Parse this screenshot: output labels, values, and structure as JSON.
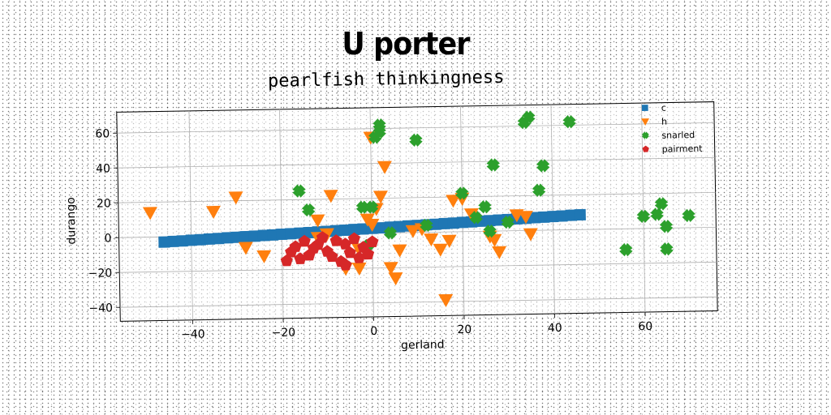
{
  "chart_data": {
    "type": "scatter",
    "title": "U porter",
    "subtitle": "pearlfish thinkingness",
    "xlabel": "gerland",
    "ylabel": "durango",
    "xlim": [
      -56,
      76
    ],
    "ylim": [
      -48,
      72
    ],
    "xticks": [
      "−40",
      "−20",
      "0",
      "20",
      "40",
      "60"
    ],
    "xtick_values": [
      -40,
      -20,
      0,
      20,
      40,
      60
    ],
    "yticks": [
      "−40",
      "−20",
      "0",
      "20",
      "40",
      "60"
    ],
    "ytick_values": [
      -40,
      -20,
      0,
      20,
      40,
      60
    ],
    "grid": true,
    "legend_position": "top-right",
    "series": [
      {
        "name": "c",
        "color": "#1f77b4",
        "marker": "square",
        "x": [
          -46,
          -44,
          -42,
          -40,
          -38,
          -36,
          -34,
          -32,
          -30,
          -28,
          -26,
          -24,
          -22,
          -20,
          -18,
          -16,
          -14,
          -12,
          -10,
          -8,
          -6,
          -4,
          -2,
          0,
          2,
          4,
          6,
          8,
          10,
          12,
          14,
          16,
          18,
          20,
          22,
          24,
          26,
          28,
          30,
          32,
          34,
          36,
          38,
          40,
          42,
          44,
          46
        ],
        "y": [
          -3,
          -2.7,
          -2.5,
          -2.2,
          -2,
          -1.7,
          -1.5,
          -1.2,
          -1,
          -0.7,
          -0.5,
          -0.2,
          0,
          0.3,
          0.5,
          0.8,
          1,
          1.3,
          1.5,
          1.8,
          2,
          2.3,
          2.5,
          2.8,
          3,
          3.3,
          3.5,
          3.8,
          4,
          4.3,
          4.5,
          4.8,
          5,
          5.3,
          5.5,
          5.8,
          6,
          6.3,
          6.5,
          6.8,
          7,
          7.3,
          7.5,
          7.8,
          8,
          8.3,
          8.5
        ]
      },
      {
        "name": "h",
        "color": "#ff7f0e",
        "marker": "triangle-down",
        "x": [
          -49,
          -35,
          -30,
          -28,
          -24,
          -12,
          -10,
          -9,
          -12,
          -6,
          -3,
          0,
          1,
          2,
          3,
          0,
          -1,
          4,
          5,
          6,
          9,
          11,
          13,
          15,
          17,
          18,
          20,
          22,
          26,
          27,
          28,
          32,
          34,
          35,
          16,
          -3
        ],
        "y": [
          14,
          14,
          22,
          -7,
          -12,
          8,
          0,
          22,
          -2,
          -20,
          -9,
          5,
          14,
          21,
          38,
          55,
          8,
          -20,
          -26,
          -10,
          1,
          2,
          -4,
          -10,
          -5,
          18,
          19,
          10,
          -3,
          -5,
          -12,
          9,
          8,
          -2,
          -39,
          -20
        ]
      },
      {
        "name": "snarled",
        "color": "#2ca02c",
        "marker": "x",
        "x": [
          -16,
          -14,
          -2,
          0,
          1,
          2,
          4,
          10,
          12,
          20,
          23,
          25,
          27,
          26,
          30,
          34,
          35,
          37,
          38,
          44,
          56,
          60,
          63,
          64,
          65,
          70,
          65,
          -1,
          2
        ],
        "y": [
          25,
          14,
          15,
          15,
          55,
          62,
          0,
          53,
          4,
          22,
          8,
          14,
          38,
          0,
          5,
          62,
          65,
          23,
          37,
          62,
          -12,
          7,
          8,
          14,
          1,
          7,
          -12,
          -7,
          58
        ]
      },
      {
        "name": "pairment",
        "color": "#d62728",
        "marker": "pentagon",
        "x": [
          -19,
          -18,
          -17,
          -15,
          -14,
          -12,
          -10,
          -9,
          -8,
          -7,
          -6,
          -5,
          -4,
          -3,
          -2,
          -1,
          0,
          -11,
          -6,
          -16,
          -13
        ],
        "y": [
          -15,
          -10,
          -7,
          -4,
          -12,
          -6,
          -10,
          -13,
          -4,
          -16,
          -6,
          -11,
          -3,
          -14,
          -8,
          -12,
          -5,
          -2,
          -18,
          -14,
          -8
        ]
      }
    ]
  }
}
